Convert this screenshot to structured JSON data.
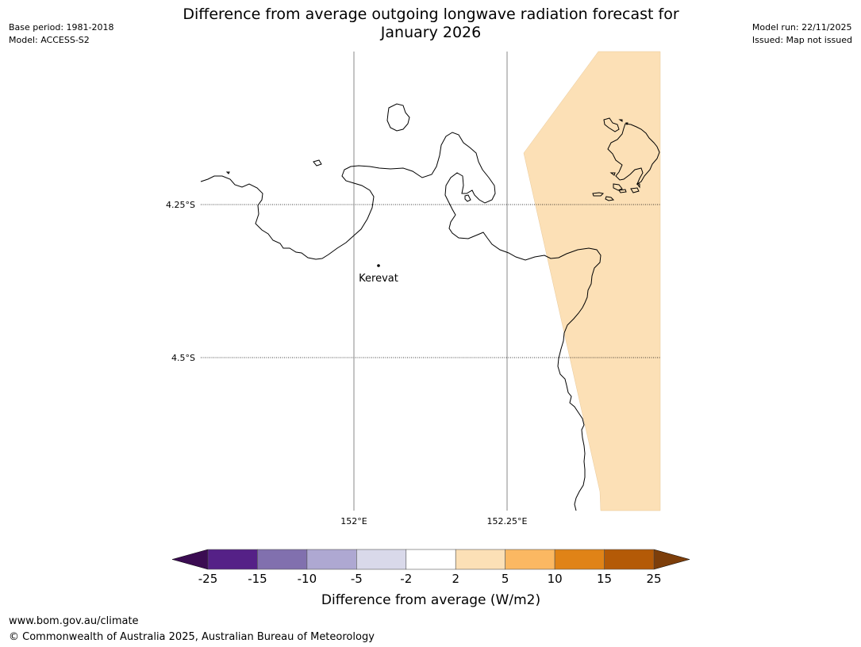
{
  "header": {
    "title_line1": "Difference from average outgoing longwave radiation forecast for",
    "title_line2": "January 2026",
    "base_period": "Base period: 1981-2018",
    "model": "Model: ACCESS-S2",
    "model_run": "Model run: 22/11/2025",
    "issued": "Issued: Map not issued"
  },
  "map": {
    "latitude_labels": [
      "4.25°S",
      "4.5°S"
    ],
    "longitude_labels": [
      "152°E",
      "152.25°E"
    ],
    "place": {
      "name": "Kerevat"
    },
    "shaded_category": "2 to 5",
    "shaded_color": "#fce0b6"
  },
  "legend": {
    "title": "Difference from average (W/m2)",
    "ticks": [
      "-25",
      "-15",
      "-10",
      "-5",
      "-2",
      "2",
      "5",
      "10",
      "15",
      "25"
    ],
    "bins": [
      {
        "label": "-25 to -15",
        "color": "#552187"
      },
      {
        "label": "-15 to -10",
        "color": "#8170ae"
      },
      {
        "label": "-10 to -5",
        "color": "#aea8d2"
      },
      {
        "label": "-5 to -2",
        "color": "#d9d9ea"
      },
      {
        "label": "-2 to 2",
        "color": "#ffffff"
      },
      {
        "label": "2 to 5",
        "color": "#fce0b6"
      },
      {
        "label": "5 to 10",
        "color": "#fbb862"
      },
      {
        "label": "10 to 15",
        "color": "#e08317"
      },
      {
        "label": "15 to 25",
        "color": "#b45a07"
      }
    ],
    "below_min_color": "#3b0c52",
    "above_max_color": "#7d3e0a"
  },
  "footer": {
    "url": "www.bom.gov.au/climate",
    "copyright": "© Commonwealth of Australia 2025, Australian Bureau of Meteorology"
  }
}
